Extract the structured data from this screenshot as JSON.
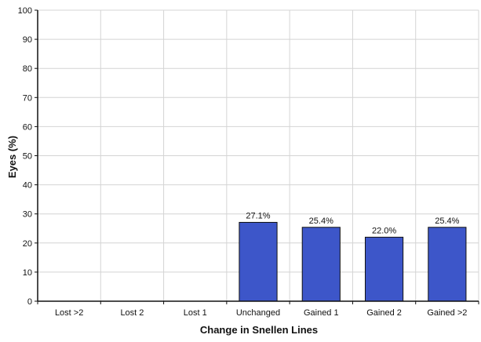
{
  "chart_data": {
    "type": "bar",
    "categories": [
      "Lost >2",
      "Lost 2",
      "Lost 1",
      "Unchanged",
      "Gained 1",
      "Gained 2",
      "Gained >2"
    ],
    "values": [
      null,
      null,
      null,
      27.1,
      25.4,
      22.0,
      25.4
    ],
    "data_labels": [
      "",
      "",
      "",
      "27.1%",
      "25.4%",
      "22.0%",
      "25.4%"
    ],
    "xlabel": "Change in Snellen Lines",
    "ylabel": "Eyes (%)",
    "ylim": [
      0,
      100
    ],
    "yticks": [
      0,
      10,
      20,
      30,
      40,
      50,
      60,
      70,
      80,
      90,
      100
    ],
    "grid": true,
    "bar_color": "#3d56c9",
    "bar_edge_color": "#111111",
    "grid_color": "#d4d4d4"
  }
}
